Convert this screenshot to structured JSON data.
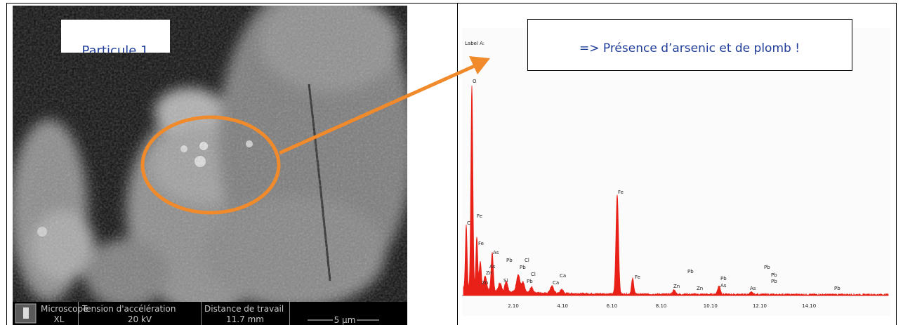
{
  "left_panel": {
    "caption": "Particule 1",
    "info_bar": {
      "microscope_label": "Microscope",
      "microscope_value": "XL",
      "voltage_label": "Tension d'accélération",
      "voltage_value": "20 kV",
      "distance_label": "Distance de travail",
      "distance_value": "11.7 mm",
      "scale": "5 µm"
    }
  },
  "right_panel": {
    "spectrum_label": "Label A:",
    "callout": "=> Présence d’arsenic et de plomb !",
    "x_axis_labels": [
      "2.10",
      "4.10",
      "6.10",
      "8.10",
      "10.10",
      "12.10",
      "14.10"
    ],
    "peak_labels": [
      "O",
      "C",
      "Fe",
      "Fe",
      "As",
      "As",
      "Zn",
      "Zn",
      "Pb",
      "Pb",
      "Cl",
      "Cl",
      "Pb",
      "Si",
      "Ca",
      "Ca",
      "Fe",
      "Fe",
      "Zn",
      "Zn",
      "Pb",
      "Pb",
      "As",
      "As",
      "Pb",
      "Pb",
      "Pb",
      "Pb"
    ]
  }
}
